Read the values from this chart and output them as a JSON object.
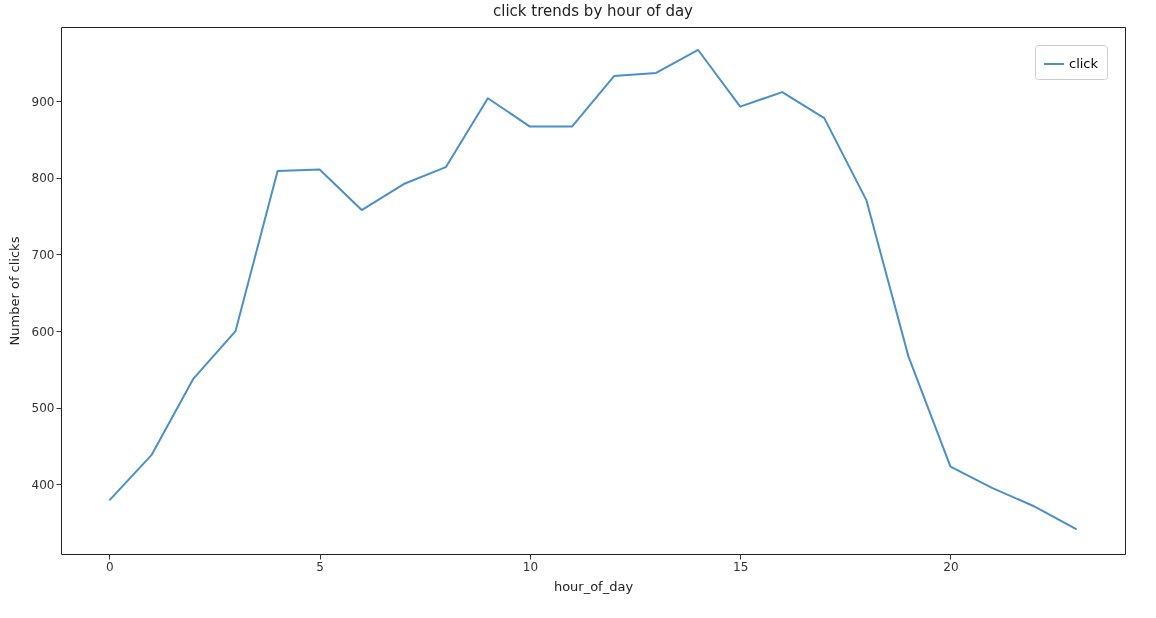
{
  "chart_data": {
    "type": "line",
    "title": "click trends by hour of day",
    "xlabel": "hour_of_day",
    "ylabel": "Number of clicks",
    "x": [
      0,
      1,
      2,
      3,
      4,
      5,
      6,
      7,
      8,
      9,
      10,
      11,
      12,
      13,
      14,
      15,
      16,
      17,
      18,
      19,
      20,
      21,
      22,
      23
    ],
    "series": [
      {
        "name": "click",
        "color": "#4a90c8",
        "values": [
          379,
          438,
          538,
          600,
          809,
          811,
          758,
          792,
          814,
          904,
          867,
          867,
          933,
          937,
          967,
          893,
          912,
          878,
          771,
          567,
          423,
          395,
          371,
          341
        ]
      }
    ],
    "xlim": [
      -1.15,
      24.15
    ],
    "xticks": [
      0,
      5,
      10,
      15,
      20
    ],
    "ylim": [
      309,
      997
    ],
    "yticks": [
      400,
      500,
      600,
      700,
      800,
      900
    ],
    "grid": false,
    "legend": "top right",
    "marker": "none",
    "line_style": "solid"
  }
}
